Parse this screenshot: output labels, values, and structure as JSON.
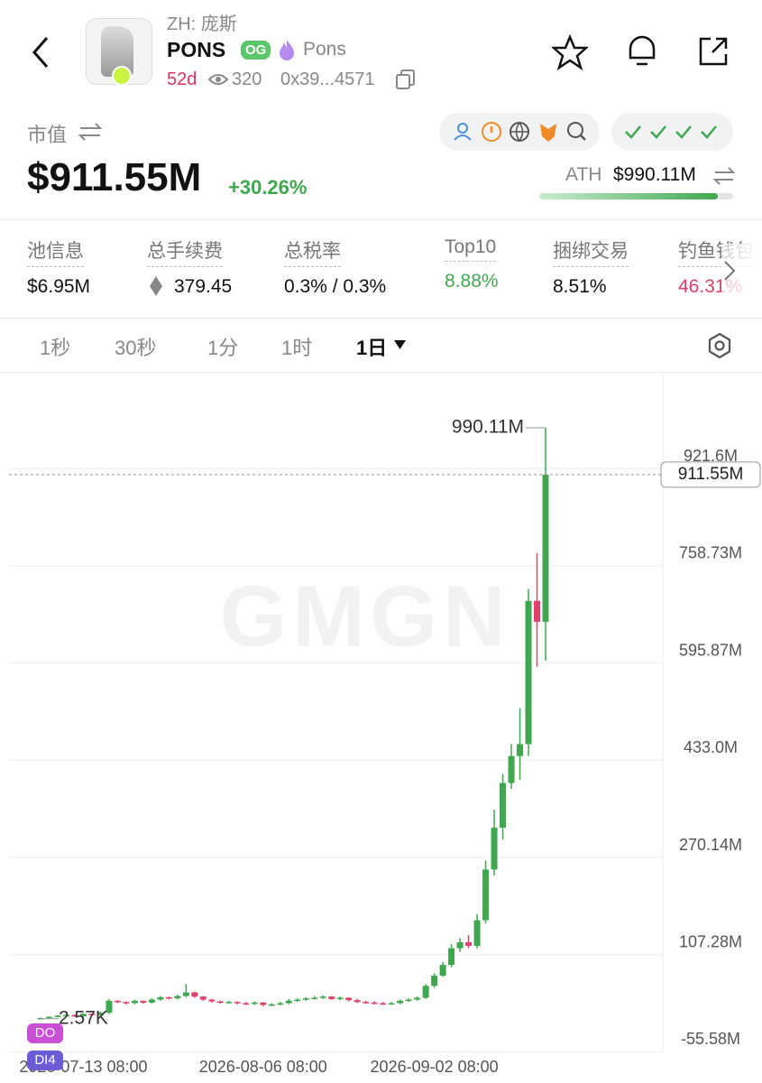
{
  "header": {
    "subtitle": "ZH: 庞斯",
    "name": "PONS",
    "badge": "OG",
    "tag": "Pons",
    "age": "52d",
    "views": "320",
    "address": "0x39...4571"
  },
  "market": {
    "label": "市值",
    "value": "$911.55M",
    "change": "+30.26%",
    "ath_label": "ATH",
    "ath_value": "$990.11M"
  },
  "stats": [
    {
      "label": "池信息",
      "value": "$6.95M"
    },
    {
      "label": "总手续费",
      "value": "379.45"
    },
    {
      "label": "总税率",
      "value": "0.3% / 0.3%"
    },
    {
      "label": "Top10",
      "value": "8.88%"
    },
    {
      "label": "捆绑交易",
      "value": "8.51%"
    },
    {
      "label": "钓鱼钱包",
      "value": "46.31%"
    }
  ],
  "tabs": [
    "1秒",
    "30秒",
    "1分",
    "1时",
    "1日"
  ],
  "chart_data": {
    "type": "candlestick",
    "watermark": "GMGN",
    "badges": [
      "DO",
      "DI4"
    ],
    "up_color": "#3fa84f",
    "down_color": "#e0416b",
    "open": [
      0.5,
      1,
      3,
      5,
      6,
      4,
      8,
      6,
      10,
      30,
      28,
      26,
      30,
      27,
      32,
      36,
      34,
      38,
      44,
      37,
      32,
      29,
      27,
      28,
      26,
      25,
      27,
      23,
      24,
      26,
      30,
      32,
      34,
      35,
      37,
      33,
      35,
      31,
      28,
      27,
      26,
      25,
      26,
      30,
      32,
      35,
      55,
      72,
      90,
      118,
      128,
      122,
      165,
      250,
      320,
      395,
      440,
      460,
      700,
      665
    ],
    "high": [
      2,
      4,
      6,
      8,
      7,
      9,
      9,
      12,
      33,
      31,
      29,
      32,
      30,
      34,
      38,
      37,
      40,
      58,
      45,
      38,
      33,
      30,
      30,
      29,
      28,
      29,
      28,
      26,
      28,
      33,
      34,
      36,
      38,
      39,
      38,
      37,
      36,
      33,
      30,
      29,
      28,
      28,
      32,
      34,
      37,
      58,
      76,
      95,
      125,
      135,
      140,
      175,
      265,
      350,
      410,
      460,
      520,
      720,
      780,
      990.11
    ],
    "low": [
      0.00257,
      0.5,
      2,
      4,
      3,
      3,
      5,
      5,
      8,
      26,
      24,
      24,
      25,
      25,
      30,
      32,
      32,
      36,
      35,
      30,
      27,
      25,
      25,
      24,
      23,
      23,
      21,
      21,
      22,
      24,
      28,
      30,
      32,
      33,
      31,
      31,
      29,
      26,
      25,
      24,
      23,
      23,
      24,
      28,
      30,
      33,
      52,
      70,
      86,
      112,
      118,
      118,
      160,
      240,
      300,
      385,
      400,
      440,
      590,
      600
    ],
    "close": [
      1,
      3,
      5,
      6,
      4,
      8,
      6,
      10,
      30,
      28,
      26,
      30,
      27,
      32,
      36,
      34,
      38,
      44,
      37,
      32,
      29,
      27,
      28,
      26,
      25,
      27,
      23,
      24,
      26,
      30,
      32,
      34,
      35,
      37,
      33,
      35,
      31,
      28,
      27,
      26,
      25,
      26,
      30,
      32,
      35,
      55,
      72,
      90,
      118,
      128,
      122,
      165,
      250,
      320,
      395,
      440,
      460,
      700,
      665,
      911.55
    ],
    "extreme_labels": {
      "high": "990.11M",
      "low": "2.57K"
    },
    "last_label": "911.55M",
    "ylim": [
      -59.4,
      1083.8
    ],
    "yticks": [
      {
        "value": 921.6,
        "label": "921.6M"
      },
      {
        "value": 758.73,
        "label": "758.73M"
      },
      {
        "value": 595.87,
        "label": "595.87M"
      },
      {
        "value": 433.0,
        "label": "433.0M"
      },
      {
        "value": 270.14,
        "label": "270.14M"
      },
      {
        "value": 107.28,
        "label": "107.28M"
      },
      {
        "value": -55.58,
        "label": "-55.58M"
      }
    ],
    "xticks": [
      {
        "value": 5,
        "label": "2026-07-13 08:00"
      },
      {
        "value": 26,
        "label": "2026-08-06 08:00"
      },
      {
        "value": 46,
        "label": "2026-09-02 08:00"
      }
    ],
    "grid": true
  }
}
